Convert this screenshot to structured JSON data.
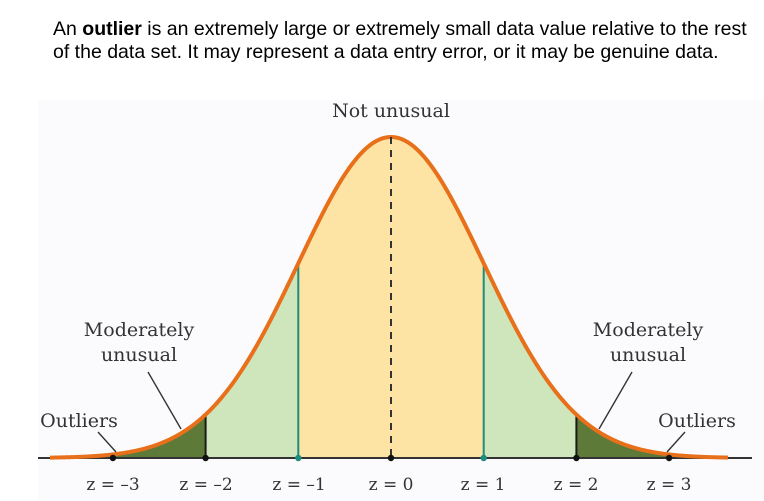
{
  "intro": {
    "pre": "An ",
    "term": "outlier",
    "post": " is an extremely large or extremely small data value relative to the rest of the data set. It may represent a data entry error, or it may be genuine data."
  },
  "labels": {
    "center": "Not unusual",
    "moderate_left_1": "Moderately",
    "moderate_left_2": "unusual",
    "moderate_right_1": "Moderately",
    "moderate_right_2": "unusual",
    "outliers_left": "Outliers",
    "outliers_right": "Outliers"
  },
  "z_ticks": [
    "z = –3",
    "z = –2",
    "z = –1",
    "z = 0",
    "z = 1",
    "z = 2",
    "z = 3"
  ],
  "colors": {
    "curve": "#e8701a",
    "center_fill": "#fde3a4",
    "moderate_fill": "#cfe6bd",
    "outlier_fill": "#5d7a38",
    "sd1_line": "#1e8c7e",
    "sd2_line": "#1a1a1a",
    "axis": "#333333"
  }
}
